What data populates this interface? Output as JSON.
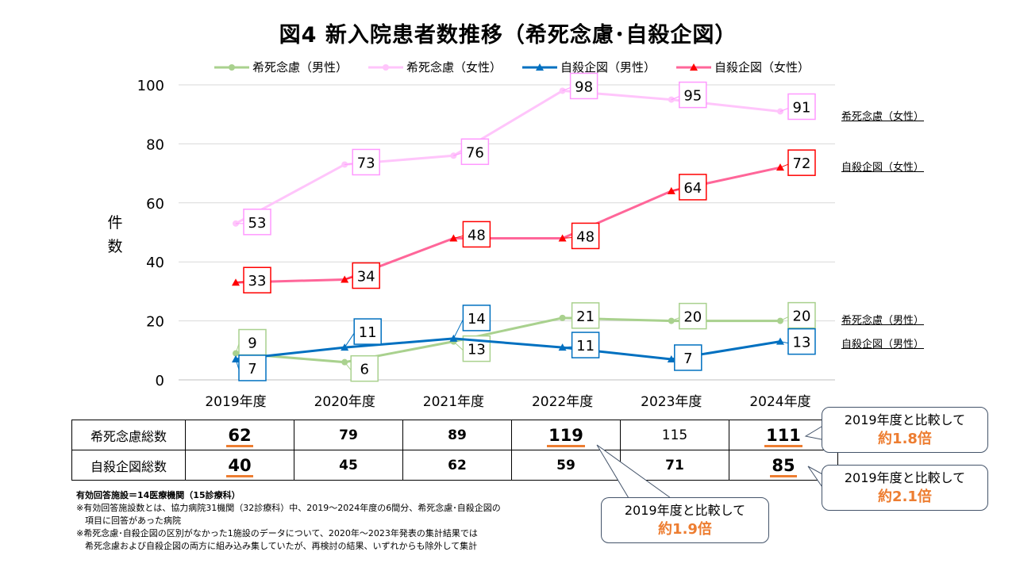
{
  "title": "図4 新入院患者数推移（希死念慮･自殺企図）",
  "chart_data": {
    "type": "line",
    "title": "図4 新入院患者数推移（希死念慮･自殺企図）",
    "ylabel": "件数",
    "ylim": [
      0,
      100
    ],
    "yticks": [
      0,
      20,
      40,
      60,
      80,
      100
    ],
    "grid": true,
    "legend": "top",
    "categories": [
      "2019年度",
      "2020年度",
      "2021年度",
      "2022年度",
      "2023年度",
      "2024年度"
    ],
    "series": [
      {
        "name": "希死念慮（男性）",
        "color": "#a9d18e",
        "marker": "circle",
        "values": [
          9,
          6,
          13,
          21,
          20,
          20
        ]
      },
      {
        "name": "希死念慮（女性）",
        "color": "#ffc5fb",
        "marker": "circle",
        "values": [
          53,
          73,
          76,
          98,
          95,
          91
        ]
      },
      {
        "name": "自殺企図（男性）",
        "color": "#0070c0",
        "marker": "triangle",
        "values": [
          7,
          11,
          14,
          11,
          7,
          13
        ]
      },
      {
        "name": "自殺企図（女性）",
        "color": "#ff6699",
        "marker_color": "#ff0000",
        "marker": "triangle",
        "values": [
          33,
          34,
          48,
          48,
          64,
          72
        ]
      }
    ],
    "right_labels": [
      "希死念慮（女性）",
      "自殺企図（女性）",
      "希死念慮（男性）",
      "自殺企図（男性）"
    ]
  },
  "table": {
    "rows": [
      {
        "label": "希死念慮総数",
        "values": [
          "62",
          "79",
          "89",
          "119",
          "115",
          "111"
        ]
      },
      {
        "label": "自殺企図総数",
        "values": [
          "40",
          "45",
          "62",
          "59",
          "71",
          "85"
        ]
      }
    ]
  },
  "callouts": [
    {
      "text": "2019年度と比較して",
      "value": "約1.8倍"
    },
    {
      "text": "2019年度と比較して",
      "value": "約2.1倍"
    },
    {
      "text": "2019年度と比較して",
      "value": "約1.9倍"
    }
  ],
  "notes": [
    "有効回答施設＝14医療機関（15診療科）",
    "※有効回答施設数とは、協力病院31機関（32診療科）中、2019～2024年度の6間分、希死念慮･自殺企図の",
    "　項目に回答があった病院",
    "※希死念慮･自殺企図の区別がなかった1施設のデータについて、2020年～2023年発表の集計結果では",
    "　希死念慮および自殺企図の両方に組み込み集していたが、再検討の結果、いずれからも除外して集計"
  ]
}
